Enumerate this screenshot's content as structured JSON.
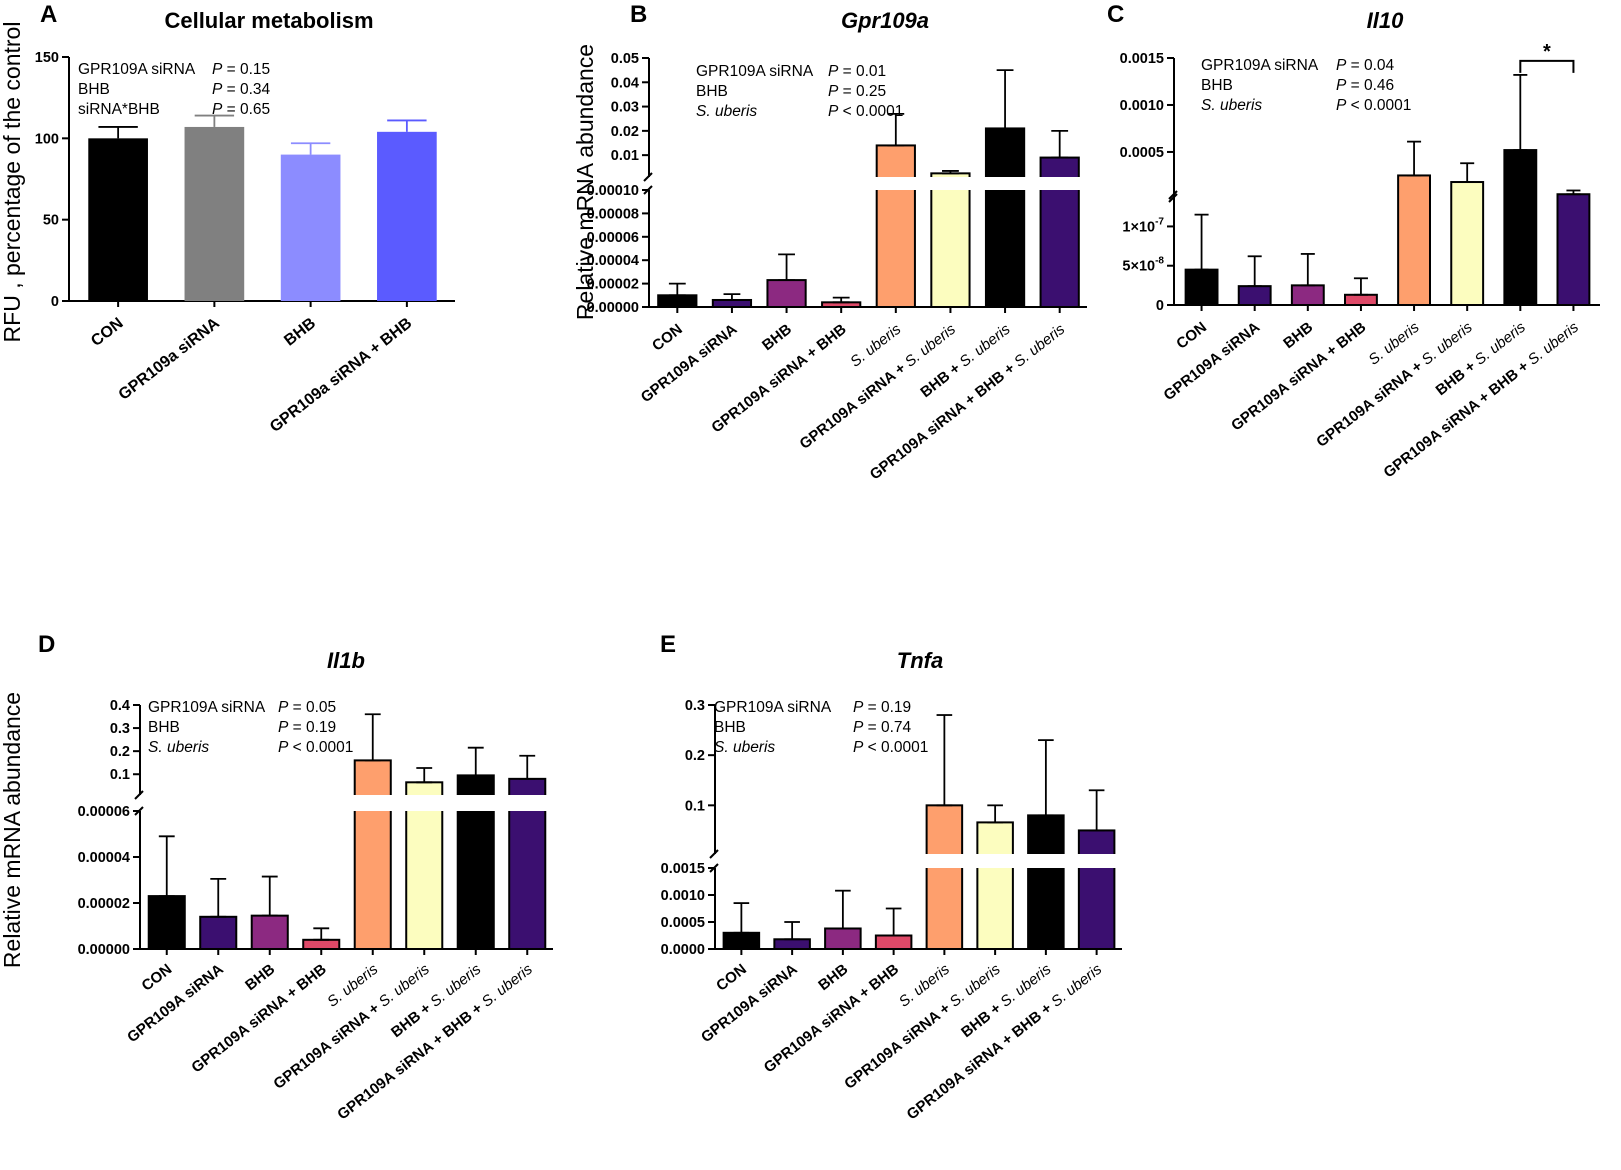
{
  "y_axis_title_main": "Relative mRNA abundance",
  "chart_data": [
    {
      "id": "A",
      "type": "bar",
      "panel_label": "A",
      "title": "Cellular metabolism",
      "title_italic": false,
      "ylabel": "RFU , percentage of the control",
      "categories": [
        {
          "label": "CON",
          "italic": []
        },
        {
          "label": "GPR109a siRNA",
          "italic": []
        },
        {
          "label": "BHB",
          "italic": []
        },
        {
          "label": "GPR109a siRNA + BHB",
          "italic": []
        }
      ],
      "values": [
        100,
        107,
        90,
        104
      ],
      "errors": [
        7,
        7,
        7,
        7
      ],
      "colors": [
        "#000000",
        "#808080",
        "#8c8cff",
        "#5b5bff"
      ],
      "y_segments": [
        {
          "min": 0,
          "max": 150,
          "ticks": [
            0,
            50,
            100,
            150
          ],
          "tick_labels": [
            "0",
            "50",
            "100",
            "150"
          ]
        }
      ],
      "stats": [
        {
          "label": "GPR109A siRNA",
          "p": "= 0.15"
        },
        {
          "label": "BHB",
          "p": "= 0.34"
        },
        {
          "label": "siRNA*BHB",
          "p": "= 0.65"
        }
      ]
    },
    {
      "id": "B",
      "type": "bar",
      "panel_label": "B",
      "title": "Gpr109a",
      "title_italic": true,
      "ylabel": "",
      "categories": [
        {
          "label": "CON",
          "italic": []
        },
        {
          "label": "GPR109A siRNA",
          "italic": []
        },
        {
          "label": "BHB",
          "italic": []
        },
        {
          "label": "GPR109A siRNA + BHB",
          "italic": []
        },
        {
          "label": "S. uberis",
          "italic": [
            "S. uberis"
          ]
        },
        {
          "label": "GPR109A siRNA + S. uberis",
          "italic": [
            "S. uberis"
          ]
        },
        {
          "label": "BHB + S. uberis",
          "italic": [
            "S. uberis"
          ]
        },
        {
          "label": "GPR109A siRNA + BHB + S. uberis",
          "italic": [
            "S. uberis"
          ]
        }
      ],
      "values": [
        1e-05,
        6e-06,
        2.3e-05,
        4e-06,
        0.014,
        0.0025,
        0.021,
        0.009
      ],
      "errors": [
        1e-05,
        5e-06,
        2.2e-05,
        4e-06,
        0.013,
        0.001,
        0.024,
        0.011
      ],
      "colors": [
        "#000000",
        "#3b0f70",
        "#8c2981",
        "#de4968",
        "#fe9f6d",
        "#fcfdbf",
        "#000000",
        "#3b0f70"
      ],
      "y_segments": [
        {
          "min": 0,
          "max": 0.0001,
          "ticks": [
            0,
            2e-05,
            4e-05,
            6e-05,
            8e-05,
            0.0001
          ],
          "tick_labels": [
            "0.00000",
            "0.00002",
            "0.00004",
            "0.00006",
            "0.00008",
            "0.00010"
          ]
        },
        {
          "min": 0.001,
          "max": 0.05,
          "ticks": [
            0.01,
            0.02,
            0.03,
            0.04,
            0.05
          ],
          "tick_labels": [
            "0.01",
            "0.02",
            "0.03",
            "0.04",
            "0.05"
          ]
        }
      ],
      "stats": [
        {
          "label": "GPR109A siRNA",
          "p": "= 0.01"
        },
        {
          "label": "BHB",
          "p": "= 0.25"
        },
        {
          "label": "S. uberis",
          "p": "< 0.0001",
          "italic": true
        }
      ]
    },
    {
      "id": "C",
      "type": "bar",
      "panel_label": "C",
      "title": "Il10",
      "title_italic": true,
      "ylabel": "",
      "categories": [
        {
          "label": "CON",
          "italic": []
        },
        {
          "label": "GPR109A siRNA",
          "italic": []
        },
        {
          "label": "BHB",
          "italic": []
        },
        {
          "label": "GPR109A siRNA + BHB",
          "italic": []
        },
        {
          "label": "S. uberis",
          "italic": [
            "S. uberis"
          ]
        },
        {
          "label": "GPR109A siRNA + S. uberis",
          "italic": [
            "S. uberis"
          ]
        },
        {
          "label": "BHB + S. uberis",
          "italic": [
            "S. uberis"
          ]
        },
        {
          "label": "GPR109A siRNA + BHB + S. uberis",
          "italic": [
            "S. uberis"
          ]
        }
      ],
      "values": [
        4.5e-08,
        2.4e-08,
        2.5e-08,
        1.3e-08,
        0.00025,
        0.00018,
        0.00052,
        5e-05
      ],
      "errors": [
        7e-08,
        3.8e-08,
        4e-08,
        2.1e-08,
        0.00036,
        0.0002,
        0.0008,
        4e-05
      ],
      "colors": [
        "#000000",
        "#3b0f70",
        "#8c2981",
        "#de4968",
        "#fe9f6d",
        "#fcfdbf",
        "#000000",
        "#3b0f70"
      ],
      "y_segments": [
        {
          "min": 0,
          "max": 1.4e-07,
          "ticks": [
            0,
            5e-08,
            1e-07
          ],
          "tick_labels": [
            "0",
            "5×10",
            "1×10"
          ],
          "tick_exps": [
            "",
            "-8",
            "-7"
          ]
        },
        {
          "min": 1e-05,
          "max": 0.0015,
          "ticks": [
            0.0005,
            0.001,
            0.0015
          ],
          "tick_labels": [
            "0.0005",
            "0.0010",
            "0.0015"
          ]
        }
      ],
      "stats": [
        {
          "label": "GPR109A siRNA",
          "p": "= 0.04"
        },
        {
          "label": "BHB",
          "p": "= 0.46"
        },
        {
          "label": "S. uberis",
          "p": "< 0.0001",
          "italic": true
        }
      ],
      "significance": {
        "from": 6,
        "to": 7,
        "label": "*"
      }
    },
    {
      "id": "D",
      "type": "bar",
      "panel_label": "D",
      "title": "Il1b",
      "title_italic": true,
      "ylabel": "Relative mRNA abundance",
      "categories": [
        {
          "label": "CON",
          "italic": []
        },
        {
          "label": "GPR109A siRNA",
          "italic": []
        },
        {
          "label": "BHB",
          "italic": []
        },
        {
          "label": "GPR109A siRNA + BHB",
          "italic": []
        },
        {
          "label": "S. uberis",
          "italic": [
            "S. uberis"
          ]
        },
        {
          "label": "GPR109A siRNA + S. uberis",
          "italic": [
            "S. uberis"
          ]
        },
        {
          "label": "BHB + S. uberis",
          "italic": [
            "S. uberis"
          ]
        },
        {
          "label": "GPR109A siRNA + BHB + S. uberis",
          "italic": [
            "S. uberis"
          ]
        }
      ],
      "values": [
        2.3e-05,
        1.4e-05,
        1.45e-05,
        4e-06,
        0.16,
        0.065,
        0.095,
        0.08
      ],
      "errors": [
        2.6e-05,
        1.65e-05,
        1.7e-05,
        5e-06,
        0.2,
        0.062,
        0.12,
        0.1
      ],
      "colors": [
        "#000000",
        "#3b0f70",
        "#8c2981",
        "#de4968",
        "#fe9f6d",
        "#fcfdbf",
        "#000000",
        "#3b0f70"
      ],
      "y_segments": [
        {
          "min": 0,
          "max": 6e-05,
          "ticks": [
            0,
            2e-05,
            4e-05,
            6e-05
          ],
          "tick_labels": [
            "0.00000",
            "0.00002",
            "0.00004",
            "0.00006"
          ]
        },
        {
          "min": 0.01,
          "max": 0.4,
          "ticks": [
            0.1,
            0.2,
            0.3,
            0.4
          ],
          "tick_labels": [
            "0.1",
            "0.2",
            "0.3",
            "0.4"
          ]
        }
      ],
      "stats": [
        {
          "label": "GPR109A siRNA",
          "p": "= 0.05"
        },
        {
          "label": "BHB",
          "p": "= 0.19"
        },
        {
          "label": "S. uberis",
          "p": "< 0.0001",
          "italic": true
        }
      ]
    },
    {
      "id": "E",
      "type": "bar",
      "panel_label": "E",
      "title": "Tnfa",
      "title_italic": true,
      "ylabel": "",
      "categories": [
        {
          "label": "CON",
          "italic": []
        },
        {
          "label": "GPR109A siRNA",
          "italic": []
        },
        {
          "label": "BHB",
          "italic": []
        },
        {
          "label": "GPR109A siRNA + BHB",
          "italic": []
        },
        {
          "label": "S. uberis",
          "italic": [
            "S. uberis"
          ]
        },
        {
          "label": "GPR109A siRNA + S. uberis",
          "italic": [
            "S. uberis"
          ]
        },
        {
          "label": "BHB + S. uberis",
          "italic": [
            "S. uberis"
          ]
        },
        {
          "label": "GPR109A siRNA + BHB + S. uberis",
          "italic": [
            "S. uberis"
          ]
        }
      ],
      "values": [
        0.0003,
        0.00018,
        0.00038,
        0.00025,
        0.1,
        0.066,
        0.08,
        0.05
      ],
      "errors": [
        0.00055,
        0.00032,
        0.0007,
        0.0005,
        0.18,
        0.034,
        0.15,
        0.08
      ],
      "colors": [
        "#000000",
        "#3b0f70",
        "#8c2981",
        "#de4968",
        "#fe9f6d",
        "#fcfdbf",
        "#000000",
        "#3b0f70"
      ],
      "y_segments": [
        {
          "min": 0,
          "max": 0.0015,
          "ticks": [
            0,
            0.0005,
            0.001,
            0.0015
          ],
          "tick_labels": [
            "0.0000",
            "0.0005",
            "0.0010",
            "0.0015"
          ]
        },
        {
          "min": 0.003,
          "max": 0.3,
          "ticks": [
            0.1,
            0.2,
            0.3
          ],
          "tick_labels": [
            "0.1",
            "0.2",
            "0.3"
          ]
        }
      ],
      "stats": [
        {
          "label": "GPR109A siRNA",
          "p": "= 0.19"
        },
        {
          "label": "BHB",
          "p": "= 0.74"
        },
        {
          "label": "S. uberis",
          "p": "< 0.0001",
          "italic": true
        }
      ]
    }
  ]
}
